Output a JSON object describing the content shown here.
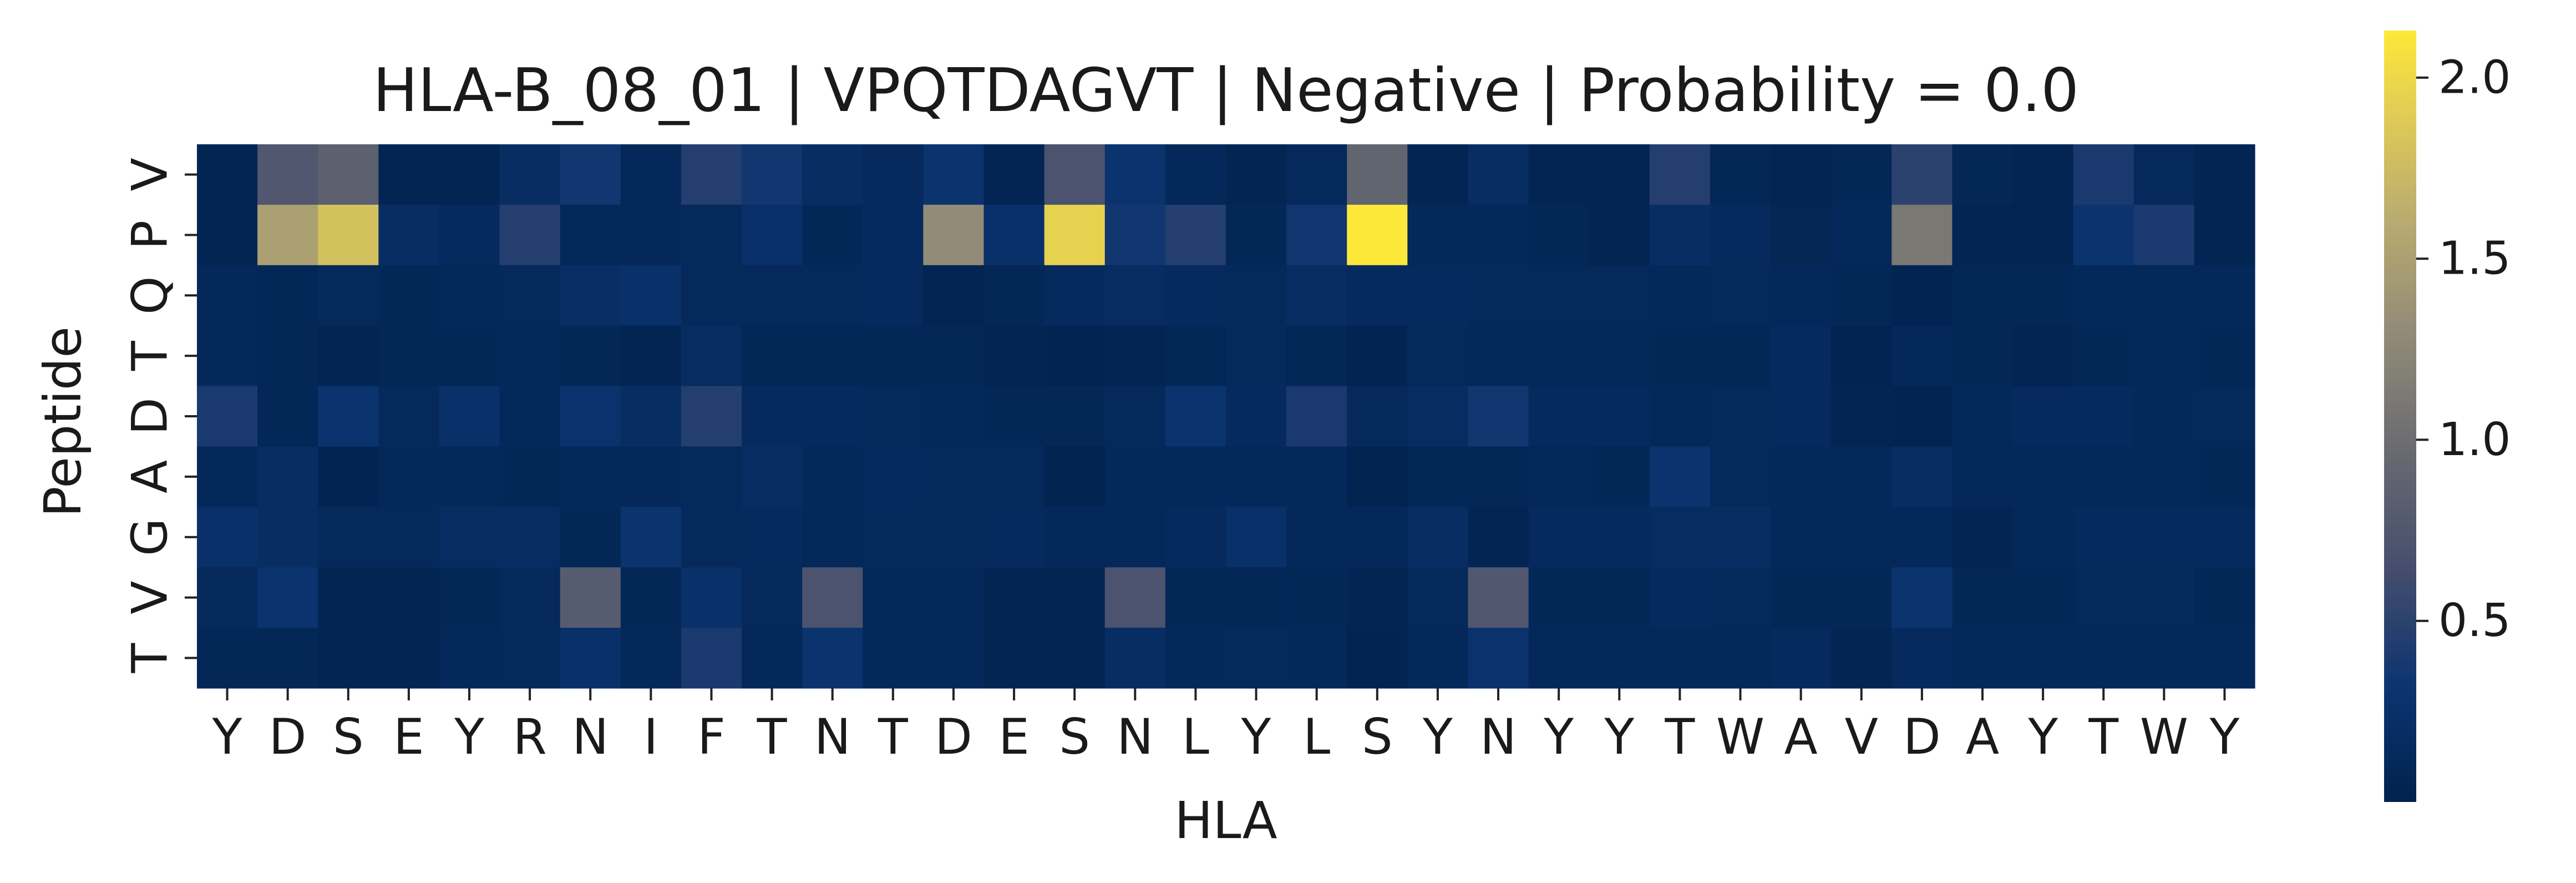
{
  "chart_data": {
    "type": "heatmap",
    "title": "HLA-B_08_01 | VPQTDAGVT | Negative | Probability = 0.0",
    "xlabel": "HLA",
    "ylabel": "Peptide",
    "x_categories": [
      "Y",
      "D",
      "S",
      "E",
      "Y",
      "R",
      "N",
      "I",
      "F",
      "T",
      "N",
      "T",
      "D",
      "E",
      "S",
      "N",
      "L",
      "Y",
      "L",
      "S",
      "Y",
      "N",
      "Y",
      "Y",
      "T",
      "W",
      "A",
      "V",
      "D",
      "A",
      "Y",
      "T",
      "W",
      "Y"
    ],
    "y_categories": [
      "V",
      "P",
      "Q",
      "T",
      "D",
      "A",
      "G",
      "V",
      "T"
    ],
    "values": [
      [
        0.05,
        0.75,
        0.85,
        0.05,
        0.05,
        0.2,
        0.35,
        0.1,
        0.45,
        0.35,
        0.2,
        0.15,
        0.3,
        0.05,
        0.7,
        0.3,
        0.1,
        0.05,
        0.12,
        0.9,
        0.05,
        0.2,
        0.05,
        0.05,
        0.45,
        0.08,
        0.05,
        0.08,
        0.5,
        0.08,
        0.05,
        0.4,
        0.12,
        0.05
      ],
      [
        0.05,
        1.5,
        1.8,
        0.2,
        0.15,
        0.45,
        0.1,
        0.1,
        0.12,
        0.25,
        0.08,
        0.15,
        1.3,
        0.25,
        1.95,
        0.35,
        0.45,
        0.08,
        0.35,
        2.12,
        0.1,
        0.1,
        0.08,
        0.05,
        0.2,
        0.15,
        0.07,
        0.1,
        1.1,
        0.05,
        0.05,
        0.3,
        0.4,
        0.05
      ],
      [
        0.1,
        0.08,
        0.12,
        0.08,
        0.1,
        0.12,
        0.22,
        0.25,
        0.12,
        0.12,
        0.12,
        0.15,
        0.05,
        0.08,
        0.15,
        0.18,
        0.15,
        0.12,
        0.2,
        0.15,
        0.15,
        0.12,
        0.12,
        0.12,
        0.1,
        0.12,
        0.1,
        0.08,
        0.04,
        0.08,
        0.08,
        0.1,
        0.1,
        0.1
      ],
      [
        0.1,
        0.08,
        0.05,
        0.08,
        0.08,
        0.1,
        0.08,
        0.06,
        0.18,
        0.08,
        0.08,
        0.08,
        0.08,
        0.05,
        0.04,
        0.06,
        0.08,
        0.12,
        0.08,
        0.04,
        0.12,
        0.1,
        0.1,
        0.1,
        0.08,
        0.08,
        0.15,
        0.04,
        0.1,
        0.08,
        0.06,
        0.08,
        0.1,
        0.08
      ],
      [
        0.4,
        0.08,
        0.3,
        0.12,
        0.25,
        0.1,
        0.28,
        0.2,
        0.45,
        0.15,
        0.15,
        0.12,
        0.1,
        0.08,
        0.08,
        0.12,
        0.3,
        0.15,
        0.4,
        0.12,
        0.18,
        0.35,
        0.15,
        0.15,
        0.1,
        0.12,
        0.15,
        0.06,
        0.04,
        0.1,
        0.15,
        0.15,
        0.1,
        0.12
      ],
      [
        0.1,
        0.2,
        0.04,
        0.1,
        0.1,
        0.08,
        0.1,
        0.1,
        0.12,
        0.2,
        0.1,
        0.15,
        0.12,
        0.12,
        0.03,
        0.1,
        0.1,
        0.1,
        0.1,
        0.03,
        0.08,
        0.08,
        0.1,
        0.08,
        0.3,
        0.12,
        0.1,
        0.1,
        0.2,
        0.1,
        0.1,
        0.1,
        0.1,
        0.08
      ],
      [
        0.25,
        0.2,
        0.12,
        0.12,
        0.18,
        0.18,
        0.08,
        0.3,
        0.12,
        0.15,
        0.1,
        0.12,
        0.12,
        0.15,
        0.1,
        0.1,
        0.15,
        0.25,
        0.1,
        0.1,
        0.2,
        0.06,
        0.15,
        0.15,
        0.18,
        0.2,
        0.1,
        0.1,
        0.1,
        0.05,
        0.1,
        0.15,
        0.15,
        0.15
      ],
      [
        0.12,
        0.3,
        0.05,
        0.05,
        0.08,
        0.12,
        0.8,
        0.08,
        0.25,
        0.12,
        0.7,
        0.1,
        0.1,
        0.05,
        0.05,
        0.7,
        0.08,
        0.08,
        0.08,
        0.05,
        0.12,
        0.75,
        0.08,
        0.08,
        0.15,
        0.12,
        0.08,
        0.08,
        0.3,
        0.08,
        0.08,
        0.12,
        0.12,
        0.08
      ],
      [
        0.08,
        0.08,
        0.05,
        0.06,
        0.1,
        0.12,
        0.25,
        0.1,
        0.4,
        0.1,
        0.3,
        0.1,
        0.1,
        0.05,
        0.05,
        0.2,
        0.1,
        0.12,
        0.1,
        0.04,
        0.1,
        0.28,
        0.1,
        0.1,
        0.1,
        0.1,
        0.15,
        0.05,
        0.15,
        0.1,
        0.1,
        0.1,
        0.1,
        0.1
      ]
    ],
    "vmin": 0.0,
    "vmax": 2.13,
    "colormap": "cividis",
    "colorbar_ticks": [
      "0.5",
      "1.0",
      "1.5",
      "2.0"
    ],
    "grid": false
  }
}
